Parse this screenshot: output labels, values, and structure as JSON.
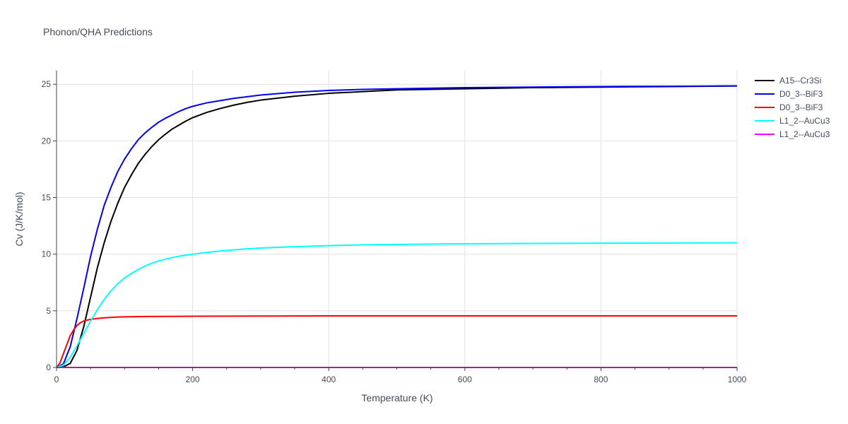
{
  "chart_data": {
    "type": "line",
    "title": "Phonon/QHA Predictions",
    "xlabel": "Temperature (K)",
    "ylabel": "Cv (J/K/mol)",
    "xlim": [
      0,
      1000
    ],
    "ylim": [
      0,
      26.2
    ],
    "xticks": [
      0,
      200,
      400,
      600,
      800,
      1000
    ],
    "yticks": [
      0,
      5,
      10,
      15,
      20,
      25
    ],
    "grid": true,
    "legend_position": "top-right",
    "series": [
      {
        "name": "A15--Cr3Si",
        "color": "#000000",
        "x": [
          0,
          10,
          20,
          30,
          40,
          50,
          60,
          70,
          80,
          90,
          100,
          110,
          120,
          130,
          140,
          150,
          160,
          170,
          180,
          190,
          200,
          220,
          240,
          260,
          280,
          300,
          350,
          400,
          450,
          500,
          600,
          700,
          800,
          900,
          1000
        ],
        "y": [
          0,
          0.05,
          0.35,
          1.5,
          3.6,
          6.2,
          8.8,
          11.0,
          12.9,
          14.5,
          15.9,
          17.0,
          18.0,
          18.8,
          19.5,
          20.1,
          20.6,
          21.05,
          21.4,
          21.75,
          22.05,
          22.5,
          22.85,
          23.15,
          23.4,
          23.6,
          23.95,
          24.2,
          24.35,
          24.5,
          24.6,
          24.7,
          24.75,
          24.8,
          24.85
        ]
      },
      {
        "name": "D0_3--BiF3",
        "color": "#0000ee",
        "x": [
          0,
          10,
          20,
          30,
          40,
          50,
          60,
          70,
          80,
          90,
          100,
          110,
          120,
          130,
          140,
          150,
          160,
          170,
          180,
          190,
          200,
          220,
          240,
          260,
          280,
          300,
          350,
          400,
          450,
          500,
          600,
          700,
          800,
          900,
          1000
        ],
        "y": [
          0,
          0.3,
          1.8,
          4.3,
          7.0,
          9.8,
          12.2,
          14.3,
          15.9,
          17.3,
          18.4,
          19.3,
          20.1,
          20.7,
          21.2,
          21.65,
          22.0,
          22.3,
          22.6,
          22.85,
          23.05,
          23.35,
          23.55,
          23.75,
          23.9,
          24.05,
          24.3,
          24.45,
          24.55,
          24.6,
          24.7,
          24.75,
          24.8,
          24.82,
          24.85
        ]
      },
      {
        "name": "D0_3--BiF3",
        "color": "#ff0000",
        "x": [
          0,
          5,
          10,
          15,
          20,
          25,
          30,
          35,
          40,
          50,
          60,
          70,
          80,
          90,
          100,
          130,
          200,
          300,
          400,
          500,
          600,
          700,
          800,
          900,
          1000
        ],
        "y": [
          0,
          0.4,
          1.2,
          2.0,
          2.8,
          3.3,
          3.7,
          3.95,
          4.1,
          4.25,
          4.33,
          4.38,
          4.42,
          4.45,
          4.47,
          4.5,
          4.52,
          4.54,
          4.55,
          4.55,
          4.55,
          4.55,
          4.55,
          4.55,
          4.55
        ]
      },
      {
        "name": "L1_2--AuCu3",
        "color": "#00ffff",
        "x": [
          0,
          10,
          20,
          30,
          40,
          50,
          60,
          70,
          80,
          90,
          100,
          110,
          120,
          130,
          140,
          150,
          160,
          170,
          180,
          190,
          200,
          220,
          240,
          260,
          280,
          300,
          350,
          400,
          450,
          500,
          600,
          700,
          800,
          900,
          1000
        ],
        "y": [
          0,
          0.2,
          0.9,
          1.9,
          3.0,
          4.1,
          5.1,
          6.0,
          6.75,
          7.4,
          7.9,
          8.3,
          8.65,
          8.95,
          9.2,
          9.4,
          9.55,
          9.7,
          9.82,
          9.92,
          10.0,
          10.15,
          10.28,
          10.38,
          10.47,
          10.54,
          10.66,
          10.75,
          10.82,
          10.86,
          10.92,
          10.95,
          10.97,
          10.99,
          11.0
        ]
      },
      {
        "name": "L1_2--AuCu3",
        "color": "#ff00ff",
        "x": [
          0,
          1000
        ],
        "y": [
          0,
          0
        ]
      }
    ]
  }
}
